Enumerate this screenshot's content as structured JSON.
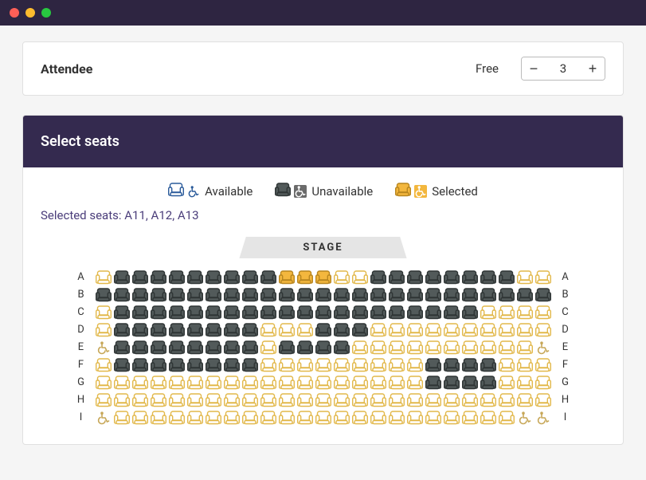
{
  "attendee": {
    "label": "Attendee",
    "price_label": "Free",
    "quantity": 3
  },
  "seats_panel": {
    "title": "Select seats",
    "legend": {
      "available": "Available",
      "unavailable": "Unavailable",
      "selected": "Selected"
    },
    "selected_label": "Selected seats:",
    "selected_seats": "A11, A12, A13",
    "stage_label": "STAGE"
  },
  "colors": {
    "header_bg": "#342a4f",
    "titlebar_bg": "#2e2541",
    "available_stroke": "#e2b84a",
    "available_fill": "#ffffff",
    "unavailable_fill": "#525a5a",
    "selected_fill": "#f3b73e",
    "wc_available": "#2a5a9a",
    "wc_unavailable": "#6b6b6b",
    "wc_selected": "#f3b73e",
    "selected_text": "#4a3d7a"
  },
  "seatmap": {
    "rows": [
      "A",
      "B",
      "C",
      "D",
      "E",
      "F",
      "G",
      "H",
      "I"
    ],
    "cols": 25,
    "layout": [
      [
        "a",
        "u",
        "u",
        "u",
        "u",
        "u",
        "u",
        "u",
        "u",
        "u",
        "s",
        "s",
        "s",
        "a",
        "a",
        "u",
        "u",
        "u",
        "u",
        "u",
        "u",
        "u",
        "u",
        "a",
        "a"
      ],
      [
        "u",
        "u",
        "u",
        "u",
        "u",
        "u",
        "u",
        "u",
        "u",
        "u",
        "u",
        "u",
        "u",
        "u",
        "u",
        "u",
        "u",
        "u",
        "u",
        "u",
        "u",
        "u",
        "u",
        "u",
        "u"
      ],
      [
        "a",
        "u",
        "u",
        "u",
        "u",
        "u",
        "u",
        "u",
        "u",
        "u",
        "u",
        "u",
        "u",
        "u",
        "u",
        "u",
        "u",
        "u",
        "u",
        "u",
        "u",
        "a",
        "a",
        "a",
        "a"
      ],
      [
        "a",
        "u",
        "u",
        "u",
        "u",
        "u",
        "u",
        "u",
        "u",
        "a",
        "a",
        "a",
        "u",
        "u",
        "u",
        "a",
        "a",
        "a",
        "a",
        "a",
        "a",
        "a",
        "a",
        "a",
        "a"
      ],
      [
        "wa",
        "u",
        "u",
        "u",
        "u",
        "u",
        "u",
        "u",
        "u",
        "a",
        "u",
        "u",
        "u",
        "u",
        "a",
        "a",
        "a",
        "a",
        "a",
        "a",
        "a",
        "a",
        "a",
        "a",
        "wa"
      ],
      [
        "a",
        "u",
        "u",
        "u",
        "u",
        "u",
        "u",
        "u",
        "u",
        "a",
        "a",
        "a",
        "a",
        "a",
        "a",
        "a",
        "a",
        "a",
        "u",
        "u",
        "u",
        "u",
        "a",
        "a",
        "a"
      ],
      [
        "a",
        "a",
        "a",
        "a",
        "a",
        "a",
        "a",
        "a",
        "a",
        "a",
        "a",
        "a",
        "a",
        "a",
        "a",
        "a",
        "a",
        "a",
        "u",
        "u",
        "u",
        "u",
        "a",
        "a",
        "a"
      ],
      [
        "a",
        "a",
        "a",
        "a",
        "a",
        "a",
        "a",
        "a",
        "a",
        "a",
        "a",
        "a",
        "a",
        "a",
        "a",
        "a",
        "a",
        "a",
        "a",
        "a",
        "a",
        "a",
        "a",
        "a",
        "a"
      ],
      [
        "wa",
        "a",
        "a",
        "a",
        "a",
        "a",
        "a",
        "a",
        "a",
        "a",
        "a",
        "a",
        "a",
        "a",
        "a",
        "a",
        "a",
        "a",
        "a",
        "a",
        "a",
        "a",
        "a",
        "wa",
        "wa"
      ]
    ]
  }
}
